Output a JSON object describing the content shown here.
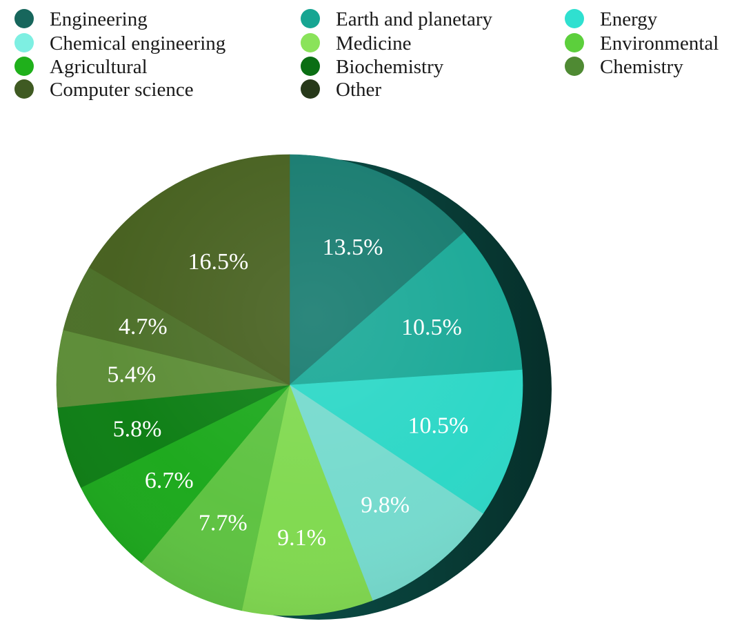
{
  "chart_data": {
    "type": "pie",
    "title": "",
    "legend_placement": "top",
    "start_angle_deg": 0,
    "direction": "clockwise",
    "slices": [
      {
        "name": "Engineering",
        "value": 13.5,
        "label": "13.5%",
        "color": "#157a6e"
      },
      {
        "name": "Earth and planetary",
        "value": 10.5,
        "label": "10.5%",
        "color": "#18a896"
      },
      {
        "name": "Energy",
        "value": 10.5,
        "label": "10.5%",
        "color": "#2ad7c6"
      },
      {
        "name": "Chemical engineering",
        "value": 9.8,
        "label": "9.8%",
        "color": "#74dacd"
      },
      {
        "name": "Medicine",
        "value": 9.1,
        "label": "9.1%",
        "color": "#7fd94e"
      },
      {
        "name": "Environmental",
        "value": 7.7,
        "label": "7.7%",
        "color": "#5cc23f"
      },
      {
        "name": "Agricultural",
        "value": 6.7,
        "label": "6.7%",
        "color": "#1aa81a"
      },
      {
        "name": "Biochemistry",
        "value": 5.8,
        "label": "5.8%",
        "color": "#0b7d12"
      },
      {
        "name": "Chemistry",
        "value": 5.4,
        "label": "5.4%",
        "color": "#5b8c35"
      },
      {
        "name": "Computer science",
        "value": 4.7,
        "label": "4.7%",
        "color": "#4a6e26"
      },
      {
        "name": "Other",
        "value": 16.5,
        "label": "16.5%",
        "color": "#455f1d"
      }
    ],
    "legend_order": [
      "Engineering",
      "Earth and planetary",
      "Energy",
      "Chemical engineering",
      "Medicine",
      "Environmental",
      "Agricultural",
      "Biochemistry",
      "Chemistry",
      "Computer science",
      "Other"
    ],
    "legend_colors": {
      "Engineering": "#17665c",
      "Earth and planetary": "#17a592",
      "Energy": "#2fe0d0",
      "Chemical engineering": "#7eefe2",
      "Medicine": "#8ae35a",
      "Environmental": "#5ccf3c",
      "Agricultural": "#1fb01b",
      "Biochemistry": "#0b6e14",
      "Chemistry": "#4f8a33",
      "Computer science": "#3f5a22",
      "Other": "#27391a"
    }
  }
}
